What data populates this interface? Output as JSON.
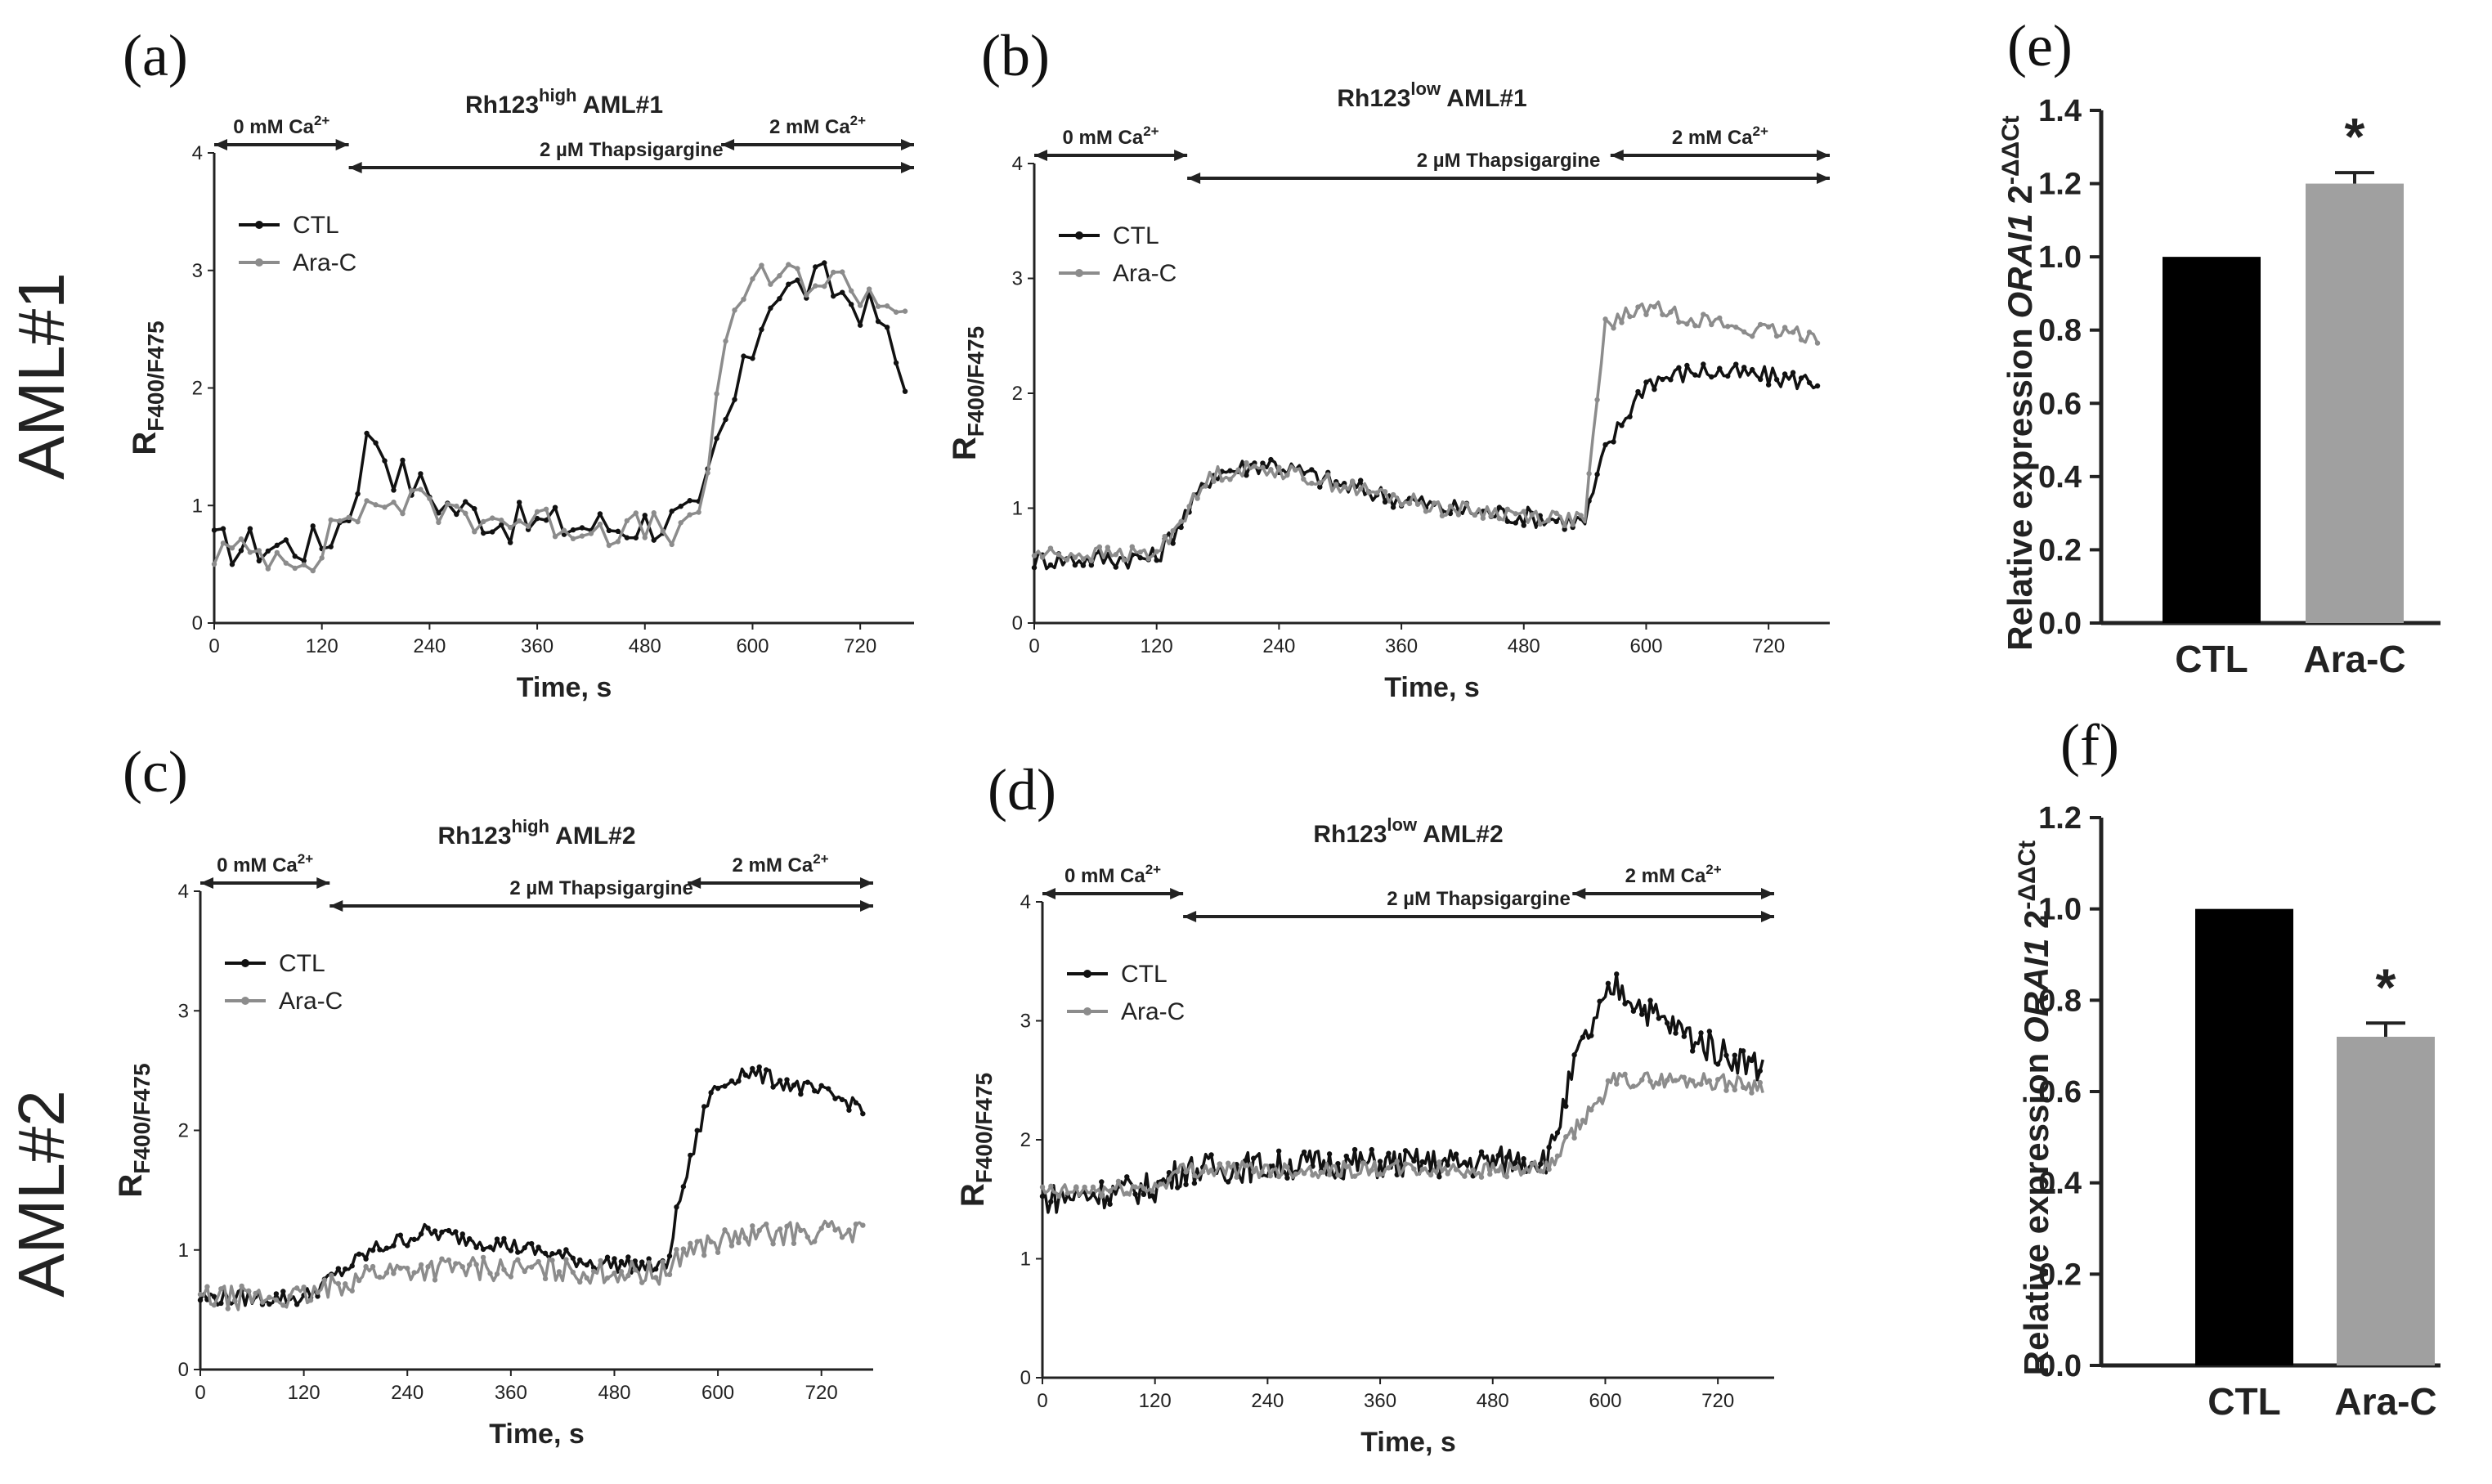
{
  "rows": [
    "AML#1",
    "AML#2"
  ],
  "colors": {
    "ctl": "#111111",
    "arac": "#8c8c8c",
    "bar_ctl": "#000000",
    "bar_arac": "#a0a0a0",
    "axis": "#222222"
  },
  "chart_data": [
    {
      "id": "a",
      "type": "line",
      "letter": "(a)",
      "title": {
        "prefix": "Rh123",
        "sup": "high",
        "suffix": " AML#1"
      },
      "xlabel": "Time, s",
      "ylabel": {
        "main": "R",
        "sub": "F400/F475"
      },
      "xlim": [
        0,
        780
      ],
      "xticks": [
        0,
        120,
        240,
        360,
        480,
        600,
        720
      ],
      "ylim": [
        0,
        4
      ],
      "yticks": [
        0,
        1,
        2,
        3,
        4
      ],
      "annotations": [
        {
          "text": "0 mM Ca",
          "sup": "2+",
          "from": 0,
          "to": 150,
          "y": 4.2,
          "level": 0
        },
        {
          "text": "2 µM Thapsigargine",
          "from": 150,
          "to": 780,
          "y": 3.75,
          "level": 1
        },
        {
          "text": "2 mM Ca",
          "sup": "2+",
          "from": 565,
          "to": 780,
          "y": 4.2,
          "level": 0
        }
      ],
      "legend": [
        "CTL",
        "Ara-C"
      ],
      "series": [
        {
          "name": "CTL",
          "keypoints": [
            [
              0,
              0.65
            ],
            [
              120,
              0.67
            ],
            [
              150,
              0.95
            ],
            [
              175,
              1.68
            ],
            [
              200,
              1.3
            ],
            [
              260,
              1.0
            ],
            [
              330,
              0.85
            ],
            [
              450,
              0.82
            ],
            [
              540,
              0.9
            ],
            [
              560,
              1.5
            ],
            [
              590,
              2.1
            ],
            [
              620,
              2.8
            ],
            [
              680,
              2.9
            ],
            [
              740,
              2.6
            ],
            [
              770,
              2.0
            ]
          ],
          "noise": 0.18,
          "step": 10
        },
        {
          "name": "Ara-C",
          "keypoints": [
            [
              0,
              0.6
            ],
            [
              120,
              0.58
            ],
            [
              140,
              0.9
            ],
            [
              200,
              1.05
            ],
            [
              300,
              0.9
            ],
            [
              450,
              0.8
            ],
            [
              540,
              0.8
            ],
            [
              555,
              1.6
            ],
            [
              575,
              2.7
            ],
            [
              620,
              2.95
            ],
            [
              700,
              2.9
            ],
            [
              770,
              2.65
            ]
          ],
          "noise": 0.15,
          "step": 10
        }
      ]
    },
    {
      "id": "b",
      "type": "line",
      "letter": "(b)",
      "title": {
        "prefix": "Rh123",
        "sup": "low",
        "suffix": " AML#1"
      },
      "xlabel": "Time, s",
      "ylabel": {
        "main": "R",
        "sub": "F400/F475"
      },
      "xlim": [
        0,
        780
      ],
      "xticks": [
        0,
        120,
        240,
        360,
        480,
        600,
        720
      ],
      "ylim": [
        0,
        4
      ],
      "yticks": [
        0,
        1,
        2,
        3,
        4
      ],
      "annotations": [
        {
          "text": "0 mM Ca",
          "sup": "2+",
          "from": 0,
          "to": 150,
          "y": 4.2,
          "level": 0
        },
        {
          "text": "2 µM Thapsigargine",
          "from": 150,
          "to": 780,
          "y": 3.75,
          "level": 1
        },
        {
          "text": "2 mM Ca",
          "sup": "2+",
          "from": 565,
          "to": 780,
          "y": 4.2,
          "level": 0
        }
      ],
      "legend": [
        "CTL",
        "Ara-C"
      ],
      "series": [
        {
          "name": "CTL",
          "keypoints": [
            [
              0,
              0.55
            ],
            [
              120,
              0.57
            ],
            [
              175,
              1.3
            ],
            [
              230,
              1.4
            ],
            [
              300,
              1.2
            ],
            [
              400,
              1.0
            ],
            [
              540,
              0.88
            ],
            [
              560,
              1.5
            ],
            [
              600,
              2.1
            ],
            [
              650,
              2.2
            ],
            [
              770,
              2.1
            ]
          ],
          "noise": 0.09,
          "step": 4
        },
        {
          "name": "Ara-C",
          "keypoints": [
            [
              0,
              0.6
            ],
            [
              120,
              0.6
            ],
            [
              175,
              1.3
            ],
            [
              230,
              1.35
            ],
            [
              300,
              1.2
            ],
            [
              400,
              1.0
            ],
            [
              540,
              0.9
            ],
            [
              560,
              2.6
            ],
            [
              600,
              2.75
            ],
            [
              700,
              2.55
            ],
            [
              770,
              2.5
            ]
          ],
          "noise": 0.07,
          "step": 4
        }
      ]
    },
    {
      "id": "c",
      "type": "line",
      "letter": "(c)",
      "title": {
        "prefix": "Rh123",
        "sup": "high",
        "suffix": " AML#2"
      },
      "xlabel": "Time, s",
      "ylabel": {
        "main": "R",
        "sub": "F400/F475"
      },
      "xlim": [
        0,
        780
      ],
      "xticks": [
        0,
        120,
        240,
        360,
        480,
        600,
        720
      ],
      "ylim": [
        0,
        4
      ],
      "yticks": [
        0,
        1,
        2,
        3,
        4
      ],
      "annotations": [
        {
          "text": "0 mM Ca",
          "sup": "2+",
          "from": 0,
          "to": 150,
          "y": 4.2,
          "level": 0
        },
        {
          "text": "2 µM Thapsigargine",
          "from": 150,
          "to": 780,
          "y": 3.75,
          "level": 1
        },
        {
          "text": "2 mM Ca",
          "sup": "2+",
          "from": 565,
          "to": 780,
          "y": 4.2,
          "level": 0
        }
      ],
      "legend": [
        "CTL",
        "Ara-C"
      ],
      "series": [
        {
          "name": "CTL",
          "keypoints": [
            [
              0,
              0.6
            ],
            [
              120,
              0.6
            ],
            [
              200,
              1.0
            ],
            [
              260,
              1.15
            ],
            [
              350,
              1.05
            ],
            [
              450,
              0.9
            ],
            [
              540,
              0.85
            ],
            [
              555,
              1.4
            ],
            [
              590,
              2.3
            ],
            [
              630,
              2.5
            ],
            [
              700,
              2.35
            ],
            [
              770,
              2.2
            ]
          ],
          "noise": 0.07,
          "step": 4
        },
        {
          "name": "Ara-C",
          "keypoints": [
            [
              0,
              0.6
            ],
            [
              120,
              0.6
            ],
            [
              200,
              0.82
            ],
            [
              300,
              0.85
            ],
            [
              450,
              0.82
            ],
            [
              540,
              0.8
            ],
            [
              560,
              1.0
            ],
            [
              620,
              1.1
            ],
            [
              700,
              1.15
            ],
            [
              770,
              1.15
            ]
          ],
          "noise": 0.1,
          "step": 4
        }
      ]
    },
    {
      "id": "d",
      "type": "line",
      "letter": "(d)",
      "title": {
        "prefix": "Rh123",
        "sup": "low",
        "suffix": " AML#2"
      },
      "xlabel": "Time, s",
      "ylabel": {
        "main": "R",
        "sub": "F400/F475"
      },
      "xlim": [
        0,
        780
      ],
      "xticks": [
        0,
        120,
        240,
        360,
        480,
        600,
        720
      ],
      "ylim": [
        0,
        4
      ],
      "yticks": [
        0,
        1,
        2,
        3,
        4
      ],
      "annotations": [
        {
          "text": "0 mM Ca",
          "sup": "2+",
          "from": 0,
          "to": 150,
          "y": 4.2,
          "level": 0
        },
        {
          "text": "2 µM Thapsigargine",
          "from": 150,
          "to": 780,
          "y": 3.75,
          "level": 1
        },
        {
          "text": "2 mM Ca",
          "sup": "2+",
          "from": 565,
          "to": 780,
          "y": 4.2,
          "level": 0
        }
      ],
      "legend": [
        "CTL",
        "Ara-C"
      ],
      "series": [
        {
          "name": "CTL",
          "keypoints": [
            [
              0,
              1.5
            ],
            [
              120,
              1.6
            ],
            [
              150,
              1.75
            ],
            [
              300,
              1.8
            ],
            [
              450,
              1.8
            ],
            [
              540,
              1.85
            ],
            [
              570,
              2.7
            ],
            [
              610,
              3.3
            ],
            [
              660,
              3.0
            ],
            [
              720,
              2.75
            ],
            [
              770,
              2.6
            ]
          ],
          "noise": 0.13,
          "step": 3
        },
        {
          "name": "Ara-C",
          "keypoints": [
            [
              0,
              1.55
            ],
            [
              120,
              1.6
            ],
            [
              150,
              1.75
            ],
            [
              300,
              1.75
            ],
            [
              450,
              1.75
            ],
            [
              540,
              1.75
            ],
            [
              570,
              2.1
            ],
            [
              610,
              2.5
            ],
            [
              700,
              2.5
            ],
            [
              770,
              2.45
            ]
          ],
          "noise": 0.07,
          "step": 3
        }
      ]
    },
    {
      "id": "e",
      "type": "bar",
      "letter": "(e)",
      "categories": [
        "CTL",
        "Ara-C"
      ],
      "values": [
        1.0,
        1.2
      ],
      "errors": [
        0,
        0.03
      ],
      "significance": [
        "",
        "*"
      ],
      "ylim": [
        0,
        1.4
      ],
      "yticks": [
        "0.0",
        "0.2",
        "0.4",
        "0.6",
        "0.8",
        "1.0",
        "1.2",
        "1.4"
      ],
      "ylabel": {
        "prefix": "Relative expression ",
        "gene": "ORAI1",
        "suffix": " 2",
        "sup": "-ΔΔCt"
      }
    },
    {
      "id": "f",
      "type": "bar",
      "letter": "(f)",
      "categories": [
        "CTL",
        "Ara-C"
      ],
      "values": [
        1.0,
        0.72
      ],
      "errors": [
        0,
        0.03
      ],
      "significance": [
        "",
        "*"
      ],
      "ylim": [
        0,
        1.2
      ],
      "yticks": [
        "0.0",
        "0.2",
        "0.4",
        "0.6",
        "0.8",
        "1.0",
        "1.2"
      ],
      "ylabel": {
        "prefix": "Relative expression ",
        "gene": "ORAI1",
        "suffix": " 2",
        "sup": "-ΔΔCt"
      }
    }
  ]
}
